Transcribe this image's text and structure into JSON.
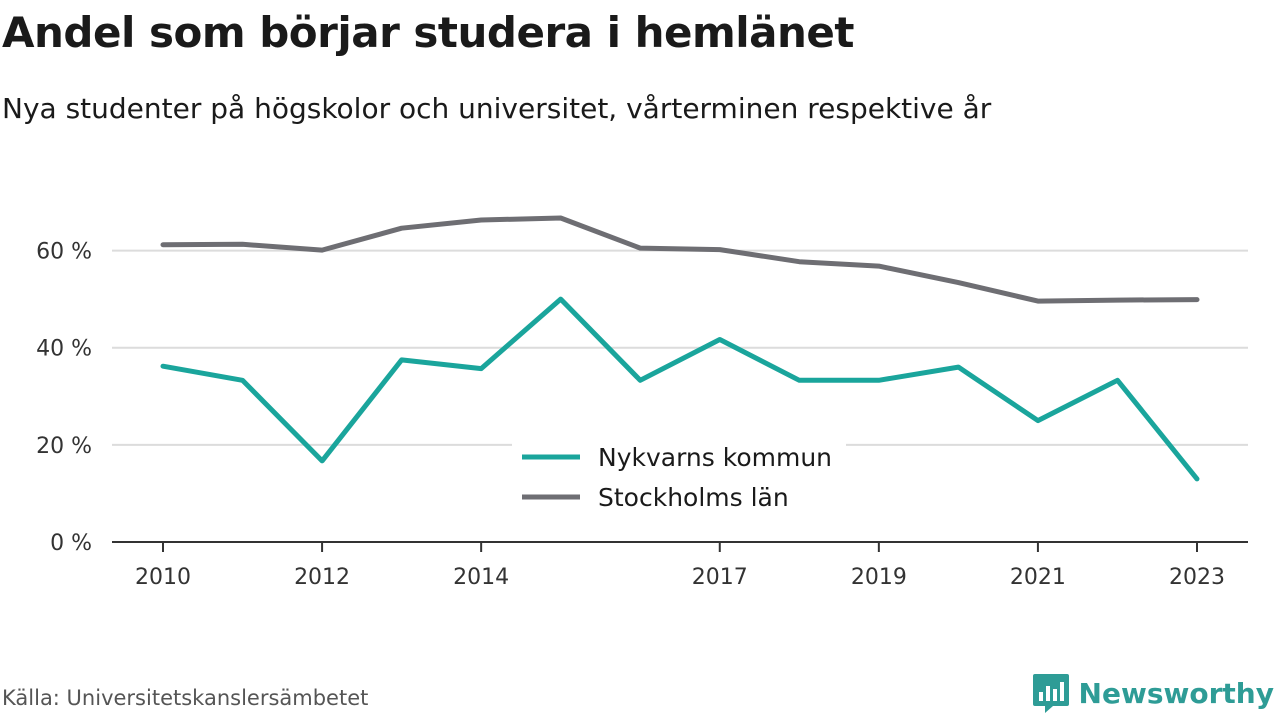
{
  "title": "Andel som börjar studera i hemlänet",
  "subtitle": "Nya studenter på högskolor och universitet, vårterminen respektive år",
  "source": "Källa: Universitetskanslersämbetet",
  "brand": {
    "name": "Newsworthy",
    "icon": "newsworthy-logo-icon",
    "color": "#2e9c96"
  },
  "chart_data": {
    "type": "line",
    "x": [
      2010,
      2011,
      2012,
      2013,
      2014,
      2015,
      2016,
      2017,
      2018,
      2019,
      2020,
      2021,
      2022,
      2023
    ],
    "x_tick_values": [
      2010,
      2012,
      2014,
      2017,
      2019,
      2021,
      2023
    ],
    "x_tick_labels": [
      "2010",
      "2012",
      "2014",
      "2017",
      "2019",
      "2021",
      "2023"
    ],
    "y_tick_values": [
      0,
      20,
      40,
      60
    ],
    "y_tick_labels": [
      "0 %",
      "20 %",
      "40 %",
      "60 %"
    ],
    "ylim": [
      0,
      70
    ],
    "grid": true,
    "legend_position": "center-bottom",
    "series": [
      {
        "name": "Nykvarns kommun",
        "color": "#1aa59c",
        "values": [
          36.2,
          33.3,
          16.7,
          37.5,
          35.7,
          50.0,
          33.3,
          41.7,
          33.3,
          33.3,
          36.0,
          25.0,
          33.3,
          13.0
        ]
      },
      {
        "name": "Stockholms län",
        "color": "#6e6e73",
        "values": [
          61.2,
          61.3,
          60.1,
          64.6,
          66.3,
          66.7,
          60.5,
          60.2,
          57.7,
          56.8,
          53.4,
          49.6,
          49.8,
          49.9
        ]
      }
    ]
  }
}
